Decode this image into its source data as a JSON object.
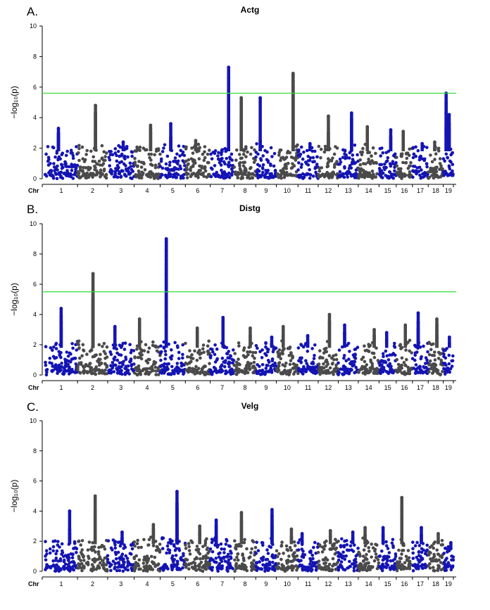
{
  "colors": {
    "dark": "#4a4a4a",
    "blue": "#1414b4",
    "threshold": "#33dd33"
  },
  "chr_prefix": "Chr",
  "chromosomes": [
    "1",
    "2",
    "3",
    "4",
    "5",
    "6",
    "7",
    "8",
    "9",
    "10",
    "11",
    "12",
    "13",
    "14",
    "15",
    "16",
    "17",
    "18",
    "19"
  ],
  "ylabel": "−log₁₀(p)",
  "chart_data": [
    {
      "type": "scatter",
      "letter": "A.",
      "title": "Actg",
      "ylim": [
        0,
        10
      ],
      "yticks": [
        0,
        2,
        4,
        6,
        8,
        10
      ],
      "threshold": 5.6,
      "color_pattern": [
        "blue",
        "dark",
        "blue",
        "dark",
        "blue",
        "dark",
        "blue",
        "dark",
        "blue",
        "dark",
        "blue",
        "dark",
        "blue",
        "dark",
        "blue",
        "dark",
        "blue",
        "dark",
        "blue"
      ],
      "peaks": [
        {
          "chr": "1",
          "values": [
            3.3,
            3.0,
            2.9,
            2.7
          ]
        },
        {
          "chr": "2",
          "values": [
            4.8,
            4.3,
            4.3,
            3.0
          ]
        },
        {
          "chr": "3",
          "values": [
            2.4,
            2.0
          ]
        },
        {
          "chr": "4",
          "values": [
            3.3,
            3.5,
            3.0
          ]
        },
        {
          "chr": "5",
          "values": [
            3.6,
            2.7,
            2.5
          ]
        },
        {
          "chr": "6",
          "values": [
            2.5,
            2.2
          ]
        },
        {
          "chr": "7",
          "values": [
            7.3,
            6.6,
            6.2,
            5.8,
            5.5,
            5.0,
            4.5,
            3.9
          ]
        },
        {
          "chr": "8",
          "values": [
            5.3,
            5.0,
            4.0,
            2.8
          ]
        },
        {
          "chr": "9",
          "values": [
            5.3,
            2.5,
            2.0
          ]
        },
        {
          "chr": "10",
          "values": [
            6.9,
            6.8,
            6.4,
            6.0,
            5.5,
            3.5
          ]
        },
        {
          "chr": "11",
          "values": [
            2.3,
            2.0
          ]
        },
        {
          "chr": "12",
          "values": [
            4.1,
            3.0,
            2.5
          ]
        },
        {
          "chr": "13",
          "values": [
            4.3,
            3.9,
            2.5
          ]
        },
        {
          "chr": "14",
          "values": [
            3.4,
            2.9
          ]
        },
        {
          "chr": "15",
          "values": [
            3.2,
            2.7
          ]
        },
        {
          "chr": "16",
          "values": [
            3.1,
            2.8
          ]
        },
        {
          "chr": "17",
          "values": [
            2.3
          ]
        },
        {
          "chr": "18",
          "values": [
            2.4,
            2.0
          ]
        },
        {
          "chr": "19",
          "values": [
            5.6,
            5.0,
            4.3,
            3.5,
            3.2
          ]
        },
        {
          "chr": "19b",
          "values": [
            4.2,
            3.6,
            3.2
          ]
        }
      ]
    },
    {
      "type": "scatter",
      "letter": "B.",
      "title": "Distg",
      "ylim": [
        0,
        10
      ],
      "yticks": [
        0,
        2,
        4,
        6,
        8,
        10
      ],
      "threshold": 5.5,
      "color_pattern": [
        "blue",
        "dark",
        "blue",
        "dark",
        "blue",
        "dark",
        "blue",
        "dark",
        "blue",
        "dark",
        "blue",
        "dark",
        "blue",
        "dark",
        "blue",
        "dark",
        "blue",
        "dark",
        "blue"
      ],
      "peaks": [
        {
          "chr": "1",
          "values": [
            4.4,
            3.9,
            3.5,
            3.0
          ]
        },
        {
          "chr": "2",
          "values": [
            6.7,
            5.5,
            5.0,
            4.5,
            4.9
          ]
        },
        {
          "chr": "3",
          "values": [
            3.2,
            2.9
          ]
        },
        {
          "chr": "4",
          "values": [
            3.7,
            3.4,
            2.9
          ]
        },
        {
          "chr": "5",
          "values": [
            9.0,
            8.8,
            8.5,
            8.2,
            7.9,
            7.6,
            7.3,
            7.0,
            6.7,
            6.3,
            5.9,
            5.3,
            4.8,
            4.4,
            3.9
          ]
        },
        {
          "chr": "6",
          "values": [
            3.1,
            2.8
          ]
        },
        {
          "chr": "7",
          "values": [
            3.8,
            3.3,
            3.0
          ]
        },
        {
          "chr": "8",
          "values": [
            3.1,
            2.6
          ]
        },
        {
          "chr": "9",
          "values": [
            2.5,
            2.0
          ]
        },
        {
          "chr": "10",
          "values": [
            3.2,
            2.6
          ]
        },
        {
          "chr": "11",
          "values": [
            2.6,
            2.2
          ]
        },
        {
          "chr": "12",
          "values": [
            4.0,
            3.5
          ]
        },
        {
          "chr": "13",
          "values": [
            3.3,
            2.8
          ]
        },
        {
          "chr": "14",
          "values": [
            3.0,
            2.6
          ]
        },
        {
          "chr": "15",
          "values": [
            2.8,
            2.3
          ]
        },
        {
          "chr": "16",
          "values": [
            3.3,
            2.8
          ]
        },
        {
          "chr": "17",
          "values": [
            4.1,
            3.5,
            3.0
          ]
        },
        {
          "chr": "18",
          "values": [
            3.7,
            3.3,
            2.6
          ]
        },
        {
          "chr": "19",
          "values": [
            2.5,
            2.1
          ]
        }
      ]
    },
    {
      "type": "scatter",
      "letter": "C.",
      "title": "Velg",
      "ylim": [
        0,
        10
      ],
      "yticks": [
        0,
        2,
        4,
        6,
        8,
        10
      ],
      "threshold": null,
      "color_pattern": [
        "blue",
        "dark",
        "blue",
        "dark",
        "blue",
        "dark",
        "blue",
        "dark",
        "blue",
        "dark",
        "blue",
        "dark",
        "blue",
        "dark",
        "blue",
        "dark",
        "blue",
        "dark",
        "blue"
      ],
      "peaks": [
        {
          "chr": "1",
          "values": [
            4.0,
            2.8,
            2.5
          ]
        },
        {
          "chr": "2",
          "values": [
            5.0,
            4.0,
            3.6
          ]
        },
        {
          "chr": "3",
          "values": [
            2.6,
            2.2
          ]
        },
        {
          "chr": "4",
          "values": [
            3.1,
            2.8
          ]
        },
        {
          "chr": "5",
          "values": [
            5.3,
            4.5,
            4.1,
            3.3,
            2.5
          ]
        },
        {
          "chr": "6",
          "values": [
            3.0,
            2.5
          ]
        },
        {
          "chr": "7",
          "values": [
            3.4,
            3.0,
            2.3
          ]
        },
        {
          "chr": "8",
          "values": [
            3.9,
            3.3
          ]
        },
        {
          "chr": "9",
          "values": [
            4.1,
            3.7,
            3.0
          ]
        },
        {
          "chr": "10",
          "values": [
            2.8,
            2.3
          ]
        },
        {
          "chr": "11",
          "values": [
            2.5,
            2.0
          ]
        },
        {
          "chr": "12",
          "values": [
            2.7,
            2.3
          ]
        },
        {
          "chr": "13",
          "values": [
            2.6,
            2.2
          ]
        },
        {
          "chr": "14",
          "values": [
            2.9,
            2.4
          ]
        },
        {
          "chr": "15",
          "values": [
            2.9,
            2.4
          ]
        },
        {
          "chr": "16",
          "values": [
            4.9,
            4.0,
            3.5
          ]
        },
        {
          "chr": "17",
          "values": [
            2.9,
            2.4
          ]
        },
        {
          "chr": "18",
          "values": [
            2.5,
            2.0
          ]
        },
        {
          "chr": "19",
          "values": [
            1.9,
            1.5
          ]
        }
      ]
    }
  ]
}
